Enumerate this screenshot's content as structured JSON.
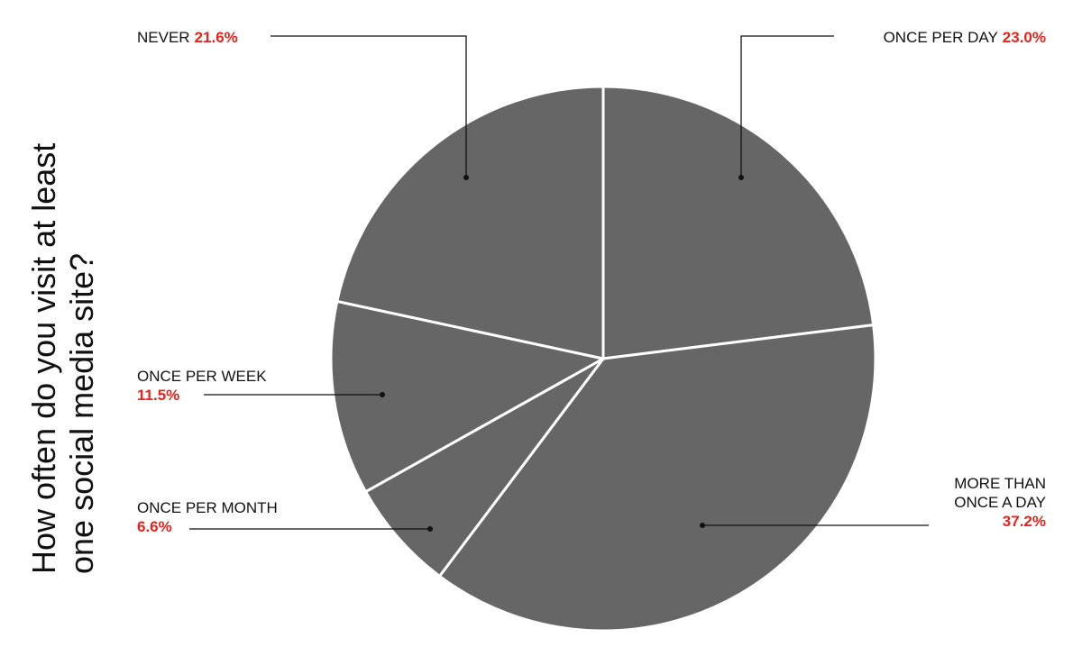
{
  "chart_data": {
    "type": "pie",
    "title": "How often do you visit at least one social media site?",
    "categories": [
      "ONCE PER DAY",
      "MORE THAN ONCE A DAY",
      "ONCE PER MONTH",
      "ONCE PER WEEK",
      "NEVER"
    ],
    "values": [
      23.0,
      37.2,
      6.6,
      11.5,
      21.6
    ],
    "value_labels": [
      "23.0%",
      "37.2%",
      "6.6%",
      "11.5%",
      "21.6%"
    ],
    "color": "#666666",
    "label_color": "#e8231b"
  }
}
